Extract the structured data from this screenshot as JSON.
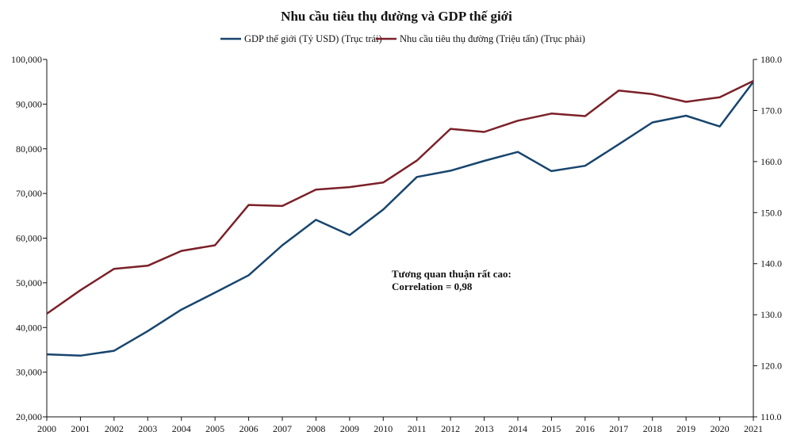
{
  "chart_data": {
    "type": "line",
    "title": "Nhu cầu tiêu thụ đường và GDP thế giới",
    "x": [
      "2000",
      "2001",
      "2002",
      "2003",
      "2004",
      "2005",
      "2006",
      "2007",
      "2008",
      "2009",
      "2010",
      "2011",
      "2012",
      "2013",
      "2014",
      "2015",
      "2016",
      "2017",
      "2018",
      "2019",
      "2020",
      "2021"
    ],
    "series": [
      {
        "name": "GDP thế giới (Tỷ USD) (Trục trái)",
        "axis": "left",
        "color": "#17456e",
        "values": [
          34000,
          33700,
          34800,
          39200,
          44000,
          47800,
          51700,
          58400,
          64100,
          60700,
          66400,
          73700,
          75100,
          77300,
          79300,
          75000,
          76200,
          81000,
          85900,
          87400,
          85000,
          95000
        ]
      },
      {
        "name": "Nhu cầu tiêu thụ đường (Triệu tấn) (Trục phải)",
        "axis": "right",
        "color": "#7b2028",
        "values": [
          130.2,
          134.8,
          139.0,
          139.6,
          142.5,
          143.6,
          151.5,
          151.3,
          154.5,
          155.0,
          155.9,
          160.2,
          166.4,
          165.8,
          168.0,
          169.4,
          168.9,
          173.9,
          173.2,
          171.7,
          172.6,
          175.8
        ]
      }
    ],
    "y_left": {
      "lim": [
        20000,
        100000
      ],
      "ticks": [
        20000,
        30000,
        40000,
        50000,
        60000,
        70000,
        80000,
        90000,
        100000
      ],
      "tick_labels": [
        "20,000",
        "30,000",
        "40,000",
        "50,000",
        "60,000",
        "70,000",
        "80,000",
        "90,000",
        "100,000"
      ]
    },
    "y_right": {
      "lim": [
        110,
        180
      ],
      "ticks": [
        110,
        120,
        130,
        140,
        150,
        160,
        170,
        180
      ],
      "tick_labels": [
        "110.0",
        "120.0",
        "130.0",
        "140.0",
        "150.0",
        "160.0",
        "170.0",
        "180.0"
      ]
    },
    "xlabel": "",
    "grid": false,
    "legend_position": "top-center",
    "annotation": {
      "line1": "Tương quan thuận rất cao:",
      "line2": "Correlation = 0,98"
    }
  }
}
